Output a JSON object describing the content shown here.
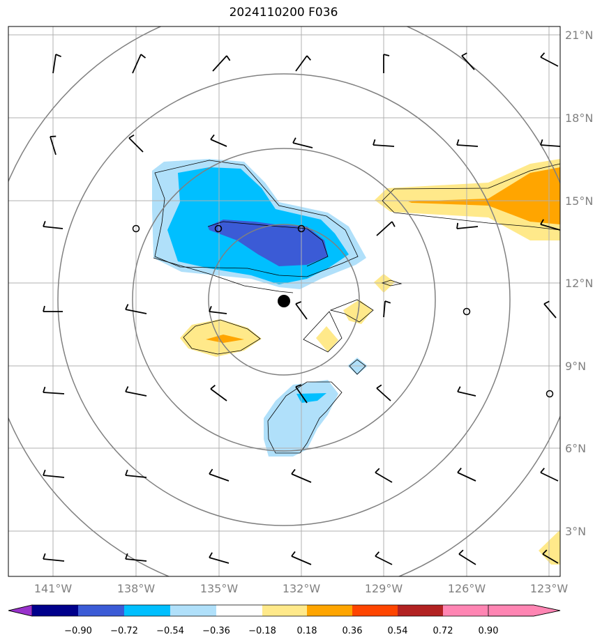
{
  "title": "2024110200 F036",
  "lon_ticks": [
    "141°W",
    "138°W",
    "135°W",
    "132°W",
    "129°W",
    "126°W",
    "123°W"
  ],
  "lat_ticks": [
    "21°N",
    "18°N",
    "15°N",
    "12°N",
    "9°N",
    "6°N",
    "3°N"
  ],
  "colorbar": {
    "labels": [
      "−0.90",
      "−0.72",
      "−0.54",
      "−0.36",
      "−0.18",
      "0.18",
      "0.36",
      "0.54",
      "0.72",
      "0.90"
    ],
    "colors": [
      "#9932cc",
      "#00008b",
      "#3b5bd6",
      "#00bfff",
      "#b0e0fa",
      "#ffffff",
      "#ffe98a",
      "#ffa500",
      "#ff4500",
      "#b22222",
      "#ff85b3"
    ]
  },
  "shading_colors": {
    "light_blue": "#b0e0fa",
    "deep_sky": "#00bfff",
    "royal": "#3b5bd6",
    "yellow": "#ffe98a",
    "orange": "#ffa500"
  },
  "center_marker": "storm-center"
}
